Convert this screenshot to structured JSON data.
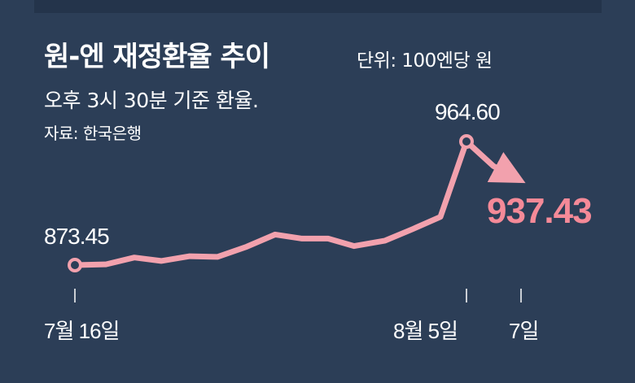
{
  "header": {
    "title": "원-엔 재정환율 추이",
    "unit": "단위: 100엔당 원",
    "subtitle": "오후 3시 30분 기준 환율.",
    "source": "자료: 한국은행"
  },
  "colors": {
    "background": "#2c3e57",
    "line": "#f2a1ad",
    "highlight": "#f58a98",
    "text": "#ffffff"
  },
  "chart_data": {
    "type": "line",
    "x_tick_labels": [
      "7월 16일",
      "8월 5일",
      "7일"
    ],
    "series": [
      {
        "values": [
          873.45,
          874.0,
          879.0,
          876.5,
          880.0,
          879.5,
          887.0,
          896.0,
          893.0,
          893.0,
          887.5,
          891.5,
          900.0,
          909.0,
          964.6,
          946.5,
          937.43
        ]
      }
    ],
    "data_labels": {
      "start": "873.45",
      "peak": "964.60",
      "end": "937.43"
    }
  }
}
